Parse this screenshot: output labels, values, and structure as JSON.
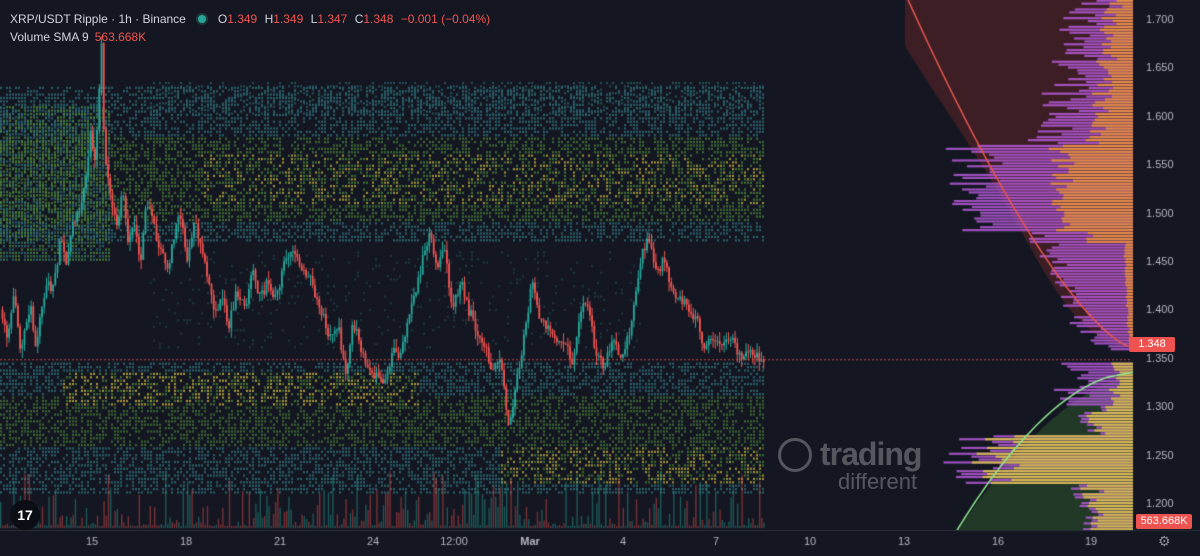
{
  "header": {
    "symbol": "XRP/USDT Ripple · 1h · Binance",
    "ohlc": [
      {
        "k": "O",
        "v": "1.349"
      },
      {
        "k": "H",
        "v": "1.349"
      },
      {
        "k": "L",
        "v": "1.347"
      },
      {
        "k": "C",
        "v": "1.348"
      }
    ],
    "change": "−0.001 (−0.04%)",
    "volume_label": "Volume SMA 9",
    "volume_value": "563.668K"
  },
  "price_axis": {
    "ticks": [
      "1.700",
      "1.650",
      "1.600",
      "1.550",
      "1.500",
      "1.450",
      "1.400",
      "1.350",
      "1.300",
      "1.250",
      "1.200"
    ],
    "current_price": "1.348",
    "volume_badge": "563.668K"
  },
  "time_axis": {
    "ticks": [
      "15",
      "18",
      "21",
      "24",
      "12:00",
      "Mar",
      "4",
      "7",
      "10",
      "13",
      "16",
      "19"
    ]
  },
  "watermark": {
    "line1": "trading",
    "line2": "different"
  },
  "logo": "17",
  "colors": {
    "up": "#26a69a",
    "down": "#ef5350",
    "background": "#141722",
    "heat_teal": "#2f6f78",
    "heat_green": "#4f8a3a",
    "heat_yellow": "#c9b53a",
    "profile_orange": "#e8913a",
    "profile_purple": "#b55ad8",
    "profile_yellow": "#d8c04a"
  },
  "chart_data": {
    "type": "candlestick",
    "symbol": "XRP/USDT",
    "interval": "1h",
    "exchange": "Binance",
    "y_range": [
      1.165,
      1.72
    ],
    "close_path": [
      [
        0,
        1.4
      ],
      [
        8,
        1.37
      ],
      [
        14,
        1.42
      ],
      [
        20,
        1.36
      ],
      [
        26,
        1.38
      ],
      [
        30,
        1.41
      ],
      [
        34,
        1.36
      ],
      [
        38,
        1.38
      ],
      [
        46,
        1.43
      ],
      [
        52,
        1.42
      ],
      [
        60,
        1.47
      ],
      [
        66,
        1.45
      ],
      [
        72,
        1.49
      ],
      [
        80,
        1.5
      ],
      [
        86,
        1.54
      ],
      [
        90,
        1.58
      ],
      [
        95,
        1.55
      ],
      [
        98,
        1.61
      ],
      [
        101,
        1.67
      ],
      [
        104,
        1.56
      ],
      [
        110,
        1.52
      ],
      [
        116,
        1.48
      ],
      [
        122,
        1.52
      ],
      [
        128,
        1.47
      ],
      [
        134,
        1.49
      ],
      [
        140,
        1.45
      ],
      [
        146,
        1.51
      ],
      [
        152,
        1.49
      ],
      [
        160,
        1.46
      ],
      [
        168,
        1.44
      ],
      [
        174,
        1.48
      ],
      [
        180,
        1.5
      ],
      [
        186,
        1.45
      ],
      [
        194,
        1.49
      ],
      [
        200,
        1.47
      ],
      [
        208,
        1.43
      ],
      [
        214,
        1.4
      ],
      [
        222,
        1.41
      ],
      [
        228,
        1.38
      ],
      [
        236,
        1.42
      ],
      [
        244,
        1.4
      ],
      [
        252,
        1.44
      ],
      [
        260,
        1.41
      ],
      [
        268,
        1.43
      ],
      [
        276,
        1.41
      ],
      [
        284,
        1.45
      ],
      [
        292,
        1.46
      ],
      [
        300,
        1.44
      ],
      [
        310,
        1.43
      ],
      [
        320,
        1.4
      ],
      [
        330,
        1.37
      ],
      [
        338,
        1.38
      ],
      [
        346,
        1.33
      ],
      [
        352,
        1.39
      ],
      [
        360,
        1.36
      ],
      [
        368,
        1.34
      ],
      [
        376,
        1.33
      ],
      [
        384,
        1.32
      ],
      [
        392,
        1.36
      ],
      [
        400,
        1.35
      ],
      [
        408,
        1.39
      ],
      [
        416,
        1.42
      ],
      [
        424,
        1.46
      ],
      [
        430,
        1.48
      ],
      [
        436,
        1.44
      ],
      [
        444,
        1.46
      ],
      [
        452,
        1.4
      ],
      [
        460,
        1.43
      ],
      [
        468,
        1.4
      ],
      [
        476,
        1.38
      ],
      [
        484,
        1.36
      ],
      [
        492,
        1.34
      ],
      [
        500,
        1.35
      ],
      [
        508,
        1.28
      ],
      [
        514,
        1.31
      ],
      [
        520,
        1.35
      ],
      [
        526,
        1.39
      ],
      [
        532,
        1.43
      ],
      [
        540,
        1.39
      ],
      [
        548,
        1.38
      ],
      [
        556,
        1.36
      ],
      [
        564,
        1.37
      ],
      [
        572,
        1.34
      ],
      [
        580,
        1.4
      ],
      [
        588,
        1.41
      ],
      [
        596,
        1.35
      ],
      [
        604,
        1.34
      ],
      [
        612,
        1.37
      ],
      [
        620,
        1.35
      ],
      [
        628,
        1.37
      ],
      [
        636,
        1.42
      ],
      [
        642,
        1.46
      ],
      [
        648,
        1.47
      ],
      [
        656,
        1.44
      ],
      [
        664,
        1.45
      ],
      [
        672,
        1.42
      ],
      [
        680,
        1.41
      ],
      [
        688,
        1.4
      ],
      [
        696,
        1.39
      ],
      [
        704,
        1.36
      ],
      [
        712,
        1.37
      ],
      [
        720,
        1.36
      ],
      [
        730,
        1.37
      ],
      [
        740,
        1.35
      ],
      [
        750,
        1.36
      ],
      [
        758,
        1.35
      ],
      [
        764,
        1.348
      ]
    ],
    "last_close": 1.348,
    "volume_sma9": "563.668K"
  }
}
